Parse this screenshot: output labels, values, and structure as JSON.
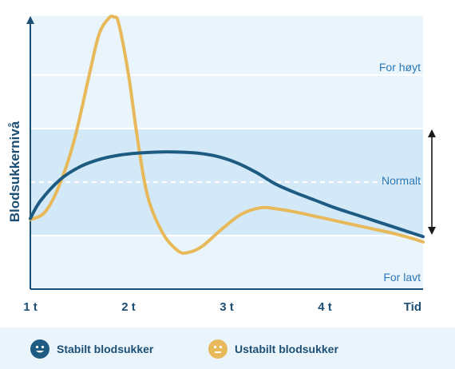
{
  "chart_data": {
    "type": "line",
    "ylabel": "Blodsukkernivå",
    "categories": [
      "1 t",
      "2 t",
      "3 t",
      "4 t",
      "Tid"
    ],
    "ranges": {
      "high": {
        "label": "For høyt",
        "from": 150,
        "to": 200
      },
      "normal": {
        "label": "Normalt",
        "from": 50,
        "to": 150
      },
      "low": {
        "label": "For lavt",
        "from": 0,
        "to": 50
      }
    },
    "ylim": [
      0,
      255
    ],
    "xlim": [
      1,
      5
    ],
    "series": [
      {
        "name": "Stabilt blodsukker",
        "color": "#1d5b82",
        "x": [
          1,
          1.1,
          1.3,
          1.5,
          1.7,
          1.9,
          2.1,
          2.3,
          2.5,
          2.7,
          2.9,
          3.1,
          3.3,
          3.5,
          3.7,
          3.9,
          4.1,
          4.3,
          4.5,
          4.7,
          4.9,
          5
        ],
        "values": [
          66,
          82,
          102,
          114,
          121,
          125,
          127,
          128,
          128,
          127,
          124,
          118,
          109,
          98,
          90,
          83,
          76,
          70,
          64,
          58,
          52,
          49
        ]
      },
      {
        "name": "Ustabilt blodsukker",
        "color": "#e8b95a",
        "x": [
          1,
          1.15,
          1.3,
          1.45,
          1.6,
          1.7,
          1.8,
          1.85,
          1.9,
          2.0,
          2.1,
          2.2,
          2.35,
          2.5,
          2.6,
          2.75,
          2.95,
          3.15,
          3.35,
          3.5,
          3.7,
          3.9,
          4.1,
          4.3,
          4.5,
          4.7,
          4.9,
          5
        ],
        "values": [
          65,
          72,
          98,
          140,
          200,
          238,
          253,
          254,
          248,
          200,
          135,
          85,
          52,
          36,
          34,
          40,
          56,
          70,
          76,
          75,
          72,
          68,
          64,
          60,
          56,
          52,
          47,
          44
        ]
      }
    ],
    "arrow": "double-headed vertical arrow spanning Normalt range"
  },
  "legend": {
    "stable": {
      "label": "Stabilt blodsukker",
      "icon": "smiley-happy-icon"
    },
    "unstable": {
      "label": "Ustabilt blodsukker",
      "icon": "smiley-neutral-icon"
    }
  }
}
